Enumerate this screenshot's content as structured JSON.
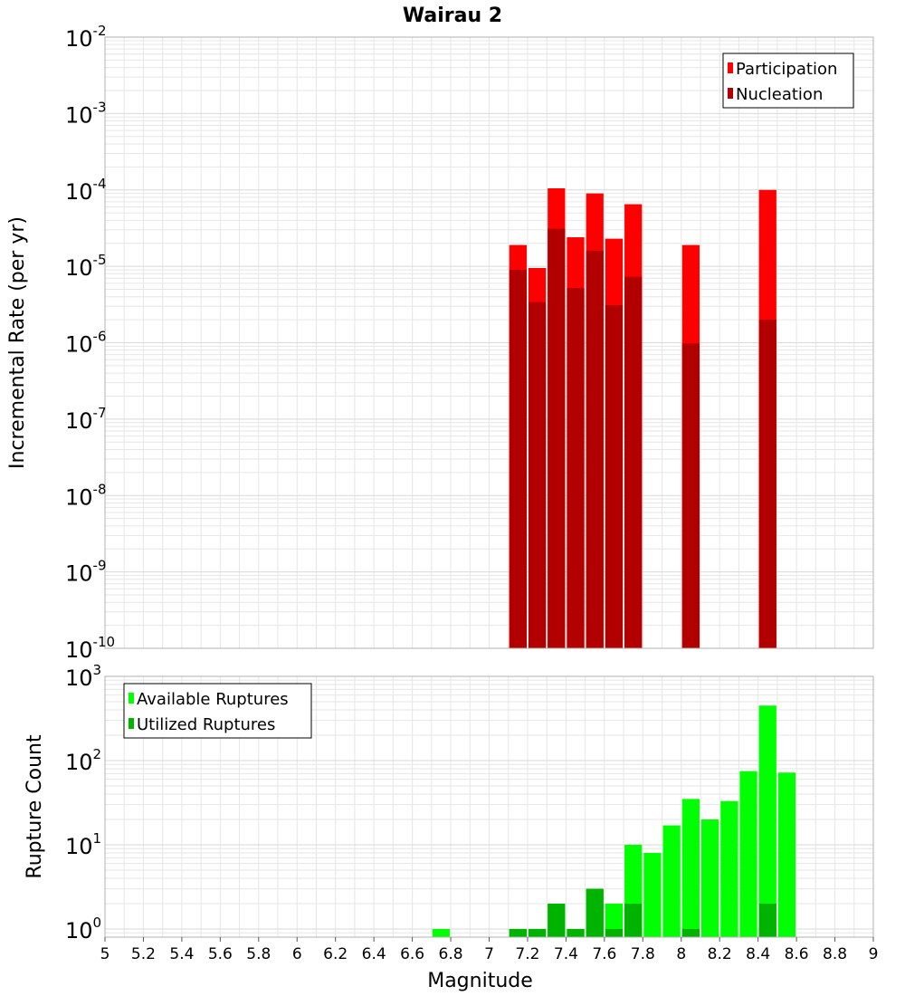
{
  "title": "Wairau 2",
  "colors": {
    "participation": "#ff0000",
    "nucleation": "#b20000",
    "available": "#00ff00",
    "utilized": "#00b300",
    "grid": "#e6e6e6",
    "frame": "#b0b0b0"
  },
  "chart_data": [
    {
      "type": "bar",
      "name": "rate-panel",
      "ylabel": "Incremental Rate (per yr)",
      "yscale": "log",
      "ylim": [
        1e-10,
        0.01
      ],
      "ytick_exponents": [
        "-2",
        "-3",
        "-4",
        "-5",
        "-6",
        "-7",
        "-8",
        "-9",
        "-10"
      ],
      "ytick_base": "10",
      "xlim": [
        5,
        9
      ],
      "legend_position": "top-right",
      "grid": true,
      "bin_width": 0.1,
      "series": [
        {
          "name": "Participation",
          "x": [
            7.15,
            7.25,
            7.35,
            7.45,
            7.55,
            7.65,
            7.75,
            8.05,
            8.45
          ],
          "values": [
            1.9e-05,
            9.5e-06,
            0.000105,
            2.4e-05,
            9e-05,
            2.3e-05,
            6.5e-05,
            1.9e-05,
            0.0001
          ]
        },
        {
          "name": "Nucleation",
          "x": [
            7.15,
            7.25,
            7.35,
            7.45,
            7.55,
            7.65,
            7.75,
            8.05,
            8.45
          ],
          "values": [
            9e-06,
            3.4e-06,
            3.1e-05,
            5.2e-06,
            1.6e-05,
            3.1e-06,
            7.3e-06,
            9.8e-07,
            2e-06
          ]
        }
      ]
    },
    {
      "type": "bar",
      "name": "count-panel",
      "xlabel": "Magnitude",
      "ylabel": "Rupture Count",
      "yscale": "log",
      "ylim": [
        0.8,
        1000
      ],
      "ytick_exponents": [
        "3",
        "2",
        "1",
        "0"
      ],
      "ytick_base": "10",
      "xlim": [
        5,
        9
      ],
      "xticks": [
        "5",
        "5.2",
        "5.4",
        "5.6",
        "5.8",
        "6",
        "6.2",
        "6.4",
        "6.6",
        "6.8",
        "7",
        "7.2",
        "7.4",
        "7.6",
        "7.8",
        "8",
        "8.2",
        "8.4",
        "8.6",
        "8.8",
        "9"
      ],
      "legend_position": "top-left",
      "grid": true,
      "bin_width": 0.1,
      "series": [
        {
          "name": "Available Ruptures",
          "x": [
            6.75,
            7.15,
            7.25,
            7.35,
            7.45,
            7.55,
            7.65,
            7.75,
            7.85,
            7.95,
            8.05,
            8.15,
            8.25,
            8.35,
            8.45,
            8.55
          ],
          "values": [
            1,
            1,
            1,
            2,
            1,
            3,
            2,
            10,
            8,
            17,
            35,
            20,
            33,
            75,
            450,
            72
          ]
        },
        {
          "name": "Utilized Ruptures",
          "x": [
            7.15,
            7.25,
            7.35,
            7.45,
            7.55,
            7.65,
            7.75,
            8.05,
            8.45
          ],
          "values": [
            1,
            1,
            2,
            1,
            3,
            1,
            2,
            1,
            2
          ]
        }
      ]
    }
  ]
}
